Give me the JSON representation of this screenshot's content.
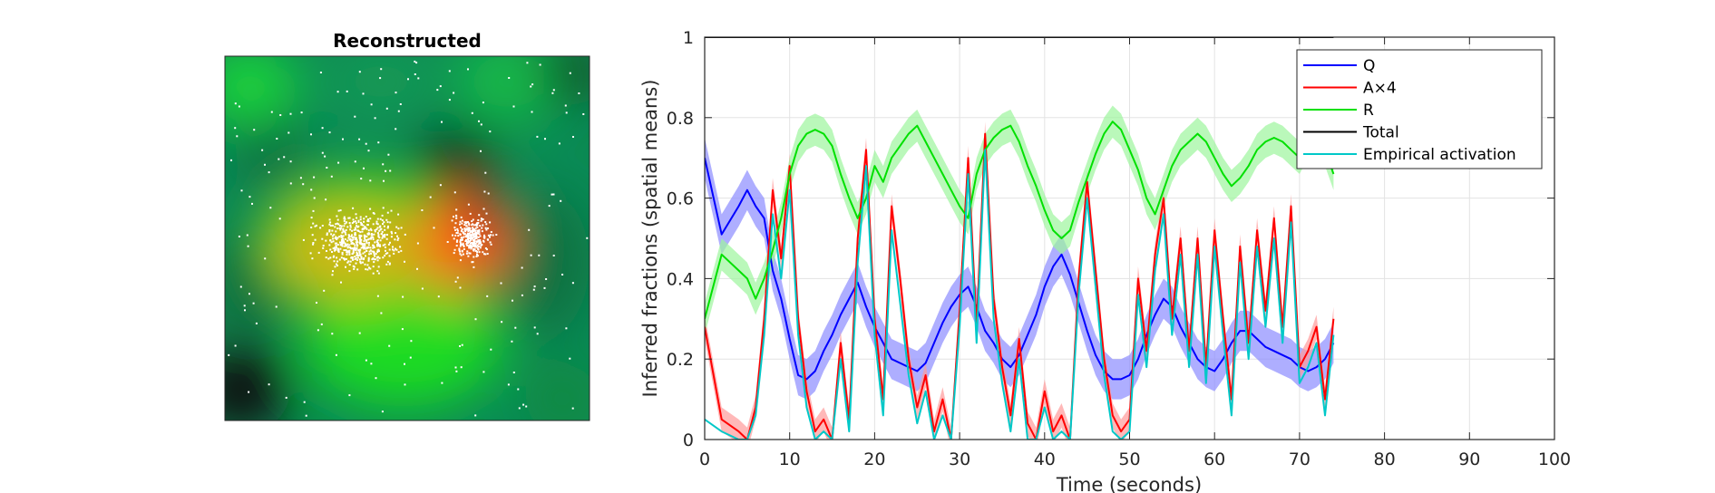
{
  "image_panel": {
    "title": "Reconstructed"
  },
  "chart_data": {
    "type": "line",
    "title": "",
    "xlabel": "Time (seconds)",
    "ylabel": "Inferred fractions (spatial means)",
    "xlim": [
      0,
      100
    ],
    "ylim": [
      0,
      1
    ],
    "xticks": [
      0,
      10,
      20,
      30,
      40,
      50,
      60,
      70,
      80,
      90,
      100
    ],
    "yticks": [
      0,
      0.2,
      0.4,
      0.6,
      0.8,
      1
    ],
    "xtick_labels": [
      "0",
      "10",
      "20",
      "30",
      "40",
      "50",
      "60",
      "70",
      "80",
      "90",
      "100"
    ],
    "ytick_labels": [
      "0",
      "0.2",
      "0.4",
      "0.6",
      "0.8",
      "1"
    ],
    "grid": true,
    "legend_position": "top-right",
    "x": [
      0,
      2,
      4,
      5,
      6,
      7,
      8,
      9,
      10,
      11,
      12,
      13,
      14,
      15,
      16,
      17,
      18,
      19,
      20,
      21,
      22,
      23,
      24,
      25,
      26,
      27,
      28,
      29,
      30,
      31,
      32,
      33,
      34,
      35,
      36,
      37,
      38,
      39,
      40,
      41,
      42,
      43,
      44,
      45,
      46,
      47,
      48,
      49,
      50,
      51,
      52,
      53,
      54,
      55,
      56,
      57,
      58,
      59,
      60,
      61,
      62,
      63,
      64,
      65,
      66,
      67,
      68,
      69,
      70,
      71,
      72,
      73,
      74
    ],
    "series": [
      {
        "name": "Q",
        "color": "#0000ff",
        "band": 0.05,
        "band_color": "#8c8cff",
        "values": [
          0.7,
          0.51,
          0.58,
          0.62,
          0.58,
          0.55,
          0.42,
          0.35,
          0.25,
          0.16,
          0.15,
          0.17,
          0.22,
          0.26,
          0.31,
          0.35,
          0.39,
          0.33,
          0.28,
          0.24,
          0.2,
          0.19,
          0.18,
          0.17,
          0.19,
          0.24,
          0.29,
          0.33,
          0.36,
          0.38,
          0.33,
          0.27,
          0.24,
          0.2,
          0.18,
          0.21,
          0.26,
          0.31,
          0.38,
          0.43,
          0.46,
          0.41,
          0.34,
          0.27,
          0.21,
          0.17,
          0.15,
          0.15,
          0.16,
          0.2,
          0.26,
          0.31,
          0.35,
          0.33,
          0.28,
          0.24,
          0.2,
          0.18,
          0.17,
          0.2,
          0.24,
          0.27,
          0.27,
          0.25,
          0.23,
          0.22,
          0.21,
          0.2,
          0.18,
          0.17,
          0.18,
          0.2,
          0.24
        ]
      },
      {
        "name": "A×4",
        "color": "#ff0000",
        "band": 0.03,
        "band_color": "#ff9a9a",
        "values": [
          0.28,
          0.05,
          0.02,
          0.0,
          0.08,
          0.3,
          0.62,
          0.45,
          0.68,
          0.3,
          0.12,
          0.02,
          0.05,
          0.0,
          0.24,
          0.05,
          0.5,
          0.72,
          0.3,
          0.1,
          0.58,
          0.4,
          0.2,
          0.08,
          0.16,
          0.02,
          0.1,
          0.0,
          0.32,
          0.7,
          0.28,
          0.76,
          0.35,
          0.18,
          0.06,
          0.25,
          0.04,
          0.0,
          0.12,
          0.02,
          0.06,
          0.0,
          0.4,
          0.64,
          0.42,
          0.2,
          0.06,
          0.02,
          0.05,
          0.4,
          0.22,
          0.46,
          0.6,
          0.3,
          0.5,
          0.22,
          0.5,
          0.18,
          0.52,
          0.3,
          0.1,
          0.48,
          0.24,
          0.52,
          0.32,
          0.55,
          0.28,
          0.58,
          0.18,
          0.22,
          0.28,
          0.1,
          0.3
        ]
      },
      {
        "name": "R",
        "color": "#00e000",
        "band": 0.04,
        "band_color": "#9cf59c",
        "values": [
          0.3,
          0.46,
          0.42,
          0.4,
          0.35,
          0.4,
          0.47,
          0.55,
          0.66,
          0.73,
          0.76,
          0.77,
          0.76,
          0.73,
          0.66,
          0.6,
          0.55,
          0.6,
          0.68,
          0.64,
          0.7,
          0.73,
          0.76,
          0.78,
          0.74,
          0.7,
          0.66,
          0.62,
          0.58,
          0.55,
          0.66,
          0.72,
          0.75,
          0.77,
          0.78,
          0.74,
          0.68,
          0.63,
          0.57,
          0.52,
          0.5,
          0.52,
          0.59,
          0.65,
          0.71,
          0.76,
          0.79,
          0.77,
          0.72,
          0.67,
          0.6,
          0.56,
          0.62,
          0.68,
          0.72,
          0.74,
          0.76,
          0.74,
          0.7,
          0.66,
          0.63,
          0.65,
          0.68,
          0.72,
          0.74,
          0.75,
          0.74,
          0.72,
          0.7,
          0.74,
          0.76,
          0.72,
          0.66
        ]
      },
      {
        "name": "Total",
        "color": "#000000",
        "band": 0,
        "band_color": "",
        "values": [
          1,
          1,
          1,
          1,
          1,
          1,
          1,
          1,
          1,
          1,
          1,
          1,
          1,
          1,
          1,
          1,
          1,
          1,
          1,
          1,
          1,
          1,
          1,
          1,
          1,
          1,
          1,
          1,
          1,
          1,
          1,
          1,
          1,
          1,
          1,
          1,
          1,
          1,
          1,
          1,
          1,
          1,
          1,
          1,
          1,
          1,
          1,
          1,
          1,
          1,
          1,
          1,
          1,
          1,
          1,
          1,
          1,
          1,
          1,
          1,
          1,
          1,
          1,
          1,
          1,
          1,
          1,
          1,
          1,
          1,
          1,
          1,
          1
        ]
      },
      {
        "name": "Empirical activation",
        "color": "#00c8c8",
        "band": 0,
        "band_color": "",
        "values": [
          0.05,
          0.02,
          0.0,
          0.0,
          0.06,
          0.26,
          0.56,
          0.4,
          0.62,
          0.26,
          0.08,
          0.0,
          0.02,
          0.0,
          0.2,
          0.02,
          0.44,
          0.68,
          0.26,
          0.06,
          0.52,
          0.34,
          0.16,
          0.04,
          0.12,
          0.0,
          0.06,
          0.0,
          0.28,
          0.66,
          0.24,
          0.72,
          0.3,
          0.14,
          0.02,
          0.2,
          0.0,
          0.0,
          0.08,
          0.0,
          0.02,
          0.0,
          0.36,
          0.6,
          0.38,
          0.16,
          0.02,
          0.0,
          0.02,
          0.36,
          0.18,
          0.42,
          0.56,
          0.26,
          0.46,
          0.18,
          0.46,
          0.14,
          0.48,
          0.26,
          0.06,
          0.44,
          0.2,
          0.48,
          0.28,
          0.5,
          0.24,
          0.54,
          0.14,
          0.18,
          0.24,
          0.06,
          0.26
        ]
      }
    ]
  }
}
